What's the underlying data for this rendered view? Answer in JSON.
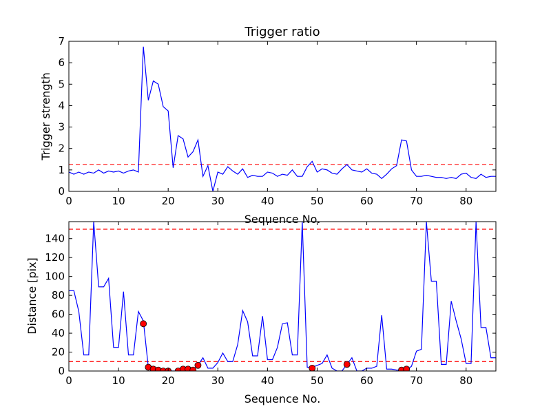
{
  "chart_data": [
    {
      "type": "line",
      "title": "Trigger ratio",
      "xlabel": "Sequence No.",
      "ylabel": "Trigger strength",
      "xlim": [
        0,
        86
      ],
      "ylim": [
        0,
        7
      ],
      "xticks": [
        "0",
        "10",
        "20",
        "30",
        "40",
        "50",
        "60",
        "70",
        "80"
      ],
      "yticks": [
        "0",
        "1",
        "2",
        "3",
        "4",
        "5",
        "6",
        "7"
      ],
      "grid": false,
      "series": [
        {
          "color": "#0000ff",
          "x": [
            0,
            1,
            2,
            3,
            4,
            5,
            6,
            7,
            8,
            9,
            10,
            11,
            12,
            13,
            14,
            15,
            16,
            17,
            18,
            19,
            20,
            21,
            22,
            23,
            24,
            25,
            26,
            27,
            28,
            29,
            30,
            31,
            32,
            33,
            34,
            35,
            36,
            37,
            38,
            39,
            40,
            41,
            42,
            43,
            44,
            45,
            46,
            47,
            48,
            49,
            50,
            51,
            52,
            53,
            54,
            55,
            56,
            57,
            58,
            59,
            60,
            61,
            62,
            63,
            64,
            65,
            66,
            67,
            68,
            69,
            70,
            71,
            72,
            73,
            74,
            75,
            76,
            77,
            78,
            79,
            80,
            81,
            82,
            83,
            84,
            85,
            86
          ],
          "values": [
            0.9,
            0.8,
            0.9,
            0.8,
            0.9,
            0.85,
            1.0,
            0.85,
            0.95,
            0.9,
            0.95,
            0.85,
            0.95,
            1.0,
            0.9,
            6.75,
            4.25,
            5.15,
            5.0,
            3.95,
            3.75,
            1.1,
            2.6,
            2.45,
            1.6,
            1.85,
            2.4,
            0.7,
            1.2,
            0.0,
            0.9,
            0.8,
            1.15,
            0.95,
            0.8,
            1.05,
            0.65,
            0.75,
            0.7,
            0.7,
            0.9,
            0.85,
            0.7,
            0.8,
            0.75,
            1.0,
            0.7,
            0.7,
            1.15,
            1.4,
            0.9,
            1.05,
            1.0,
            0.85,
            0.8,
            1.05,
            1.25,
            1.0,
            0.95,
            0.9,
            1.05,
            0.85,
            0.8,
            0.6,
            0.8,
            1.05,
            1.2,
            2.4,
            2.35,
            1.0,
            0.7,
            0.7,
            0.75,
            0.7,
            0.65,
            0.65,
            0.6,
            0.65,
            0.6,
            0.8,
            0.85,
            0.65,
            0.6,
            0.8,
            0.65,
            0.7,
            0.7
          ]
        }
      ],
      "threshold": {
        "value": 1.25,
        "color": "#ff0000",
        "style": "dashed"
      }
    },
    {
      "type": "line",
      "xlabel": "Sequence No.",
      "ylabel": "Distance [pix]",
      "xlim": [
        0,
        86
      ],
      "ylim": [
        0,
        158
      ],
      "xticks": [
        "0",
        "10",
        "20",
        "30",
        "40",
        "50",
        "60",
        "70",
        "80"
      ],
      "yticks": [
        "0",
        "20",
        "40",
        "60",
        "80",
        "100",
        "120",
        "140"
      ],
      "grid": false,
      "series": [
        {
          "color": "#0000ff",
          "x": [
            0,
            1,
            2,
            3,
            4,
            5,
            6,
            7,
            8,
            9,
            10,
            11,
            12,
            13,
            14,
            15,
            16,
            17,
            18,
            19,
            20,
            21,
            22,
            23,
            24,
            25,
            26,
            27,
            28,
            29,
            30,
            31,
            32,
            33,
            34,
            35,
            36,
            37,
            38,
            39,
            40,
            41,
            42,
            43,
            44,
            45,
            46,
            47,
            48,
            49,
            50,
            51,
            52,
            53,
            54,
            55,
            56,
            57,
            58,
            59,
            60,
            61,
            62,
            63,
            64,
            65,
            66,
            67,
            68,
            69,
            70,
            71,
            72,
            73,
            74,
            75,
            76,
            77,
            78,
            79,
            80,
            81,
            82,
            83,
            84,
            85,
            86
          ],
          "values": [
            85,
            85,
            63,
            17,
            17,
            158,
            89,
            89,
            98,
            25,
            25,
            84,
            17,
            17,
            63,
            53,
            4,
            2,
            1,
            0,
            0,
            0,
            0,
            1,
            0,
            1,
            6,
            14,
            3,
            3,
            9,
            19,
            10,
            10,
            28,
            64,
            52,
            16,
            16,
            58,
            12,
            12,
            25,
            50,
            51,
            17,
            17,
            158,
            4,
            4,
            6,
            8,
            17,
            3,
            0,
            0,
            7,
            14,
            0,
            0,
            3,
            3,
            5,
            59,
            2,
            2,
            1,
            1,
            1,
            5,
            21,
            23,
            158,
            95,
            95,
            7,
            7,
            74,
            53,
            34,
            8,
            8,
            158,
            46,
            46,
            14,
            14
          ]
        }
      ],
      "markers": {
        "color": "#ff0000",
        "points": [
          [
            15,
            50
          ],
          [
            16,
            4
          ],
          [
            17,
            2
          ],
          [
            18,
            1
          ],
          [
            19,
            0
          ],
          [
            20,
            0
          ],
          [
            22,
            0
          ],
          [
            23,
            2
          ],
          [
            24,
            2
          ],
          [
            25,
            1
          ],
          [
            26,
            6
          ],
          [
            49,
            3
          ],
          [
            56,
            7
          ],
          [
            67,
            1
          ],
          [
            68,
            2
          ]
        ]
      },
      "thresholds": [
        {
          "value": 150,
          "color": "#ff0000",
          "style": "dashed"
        },
        {
          "value": 10,
          "color": "#ff0000",
          "style": "dashed"
        }
      ]
    }
  ]
}
